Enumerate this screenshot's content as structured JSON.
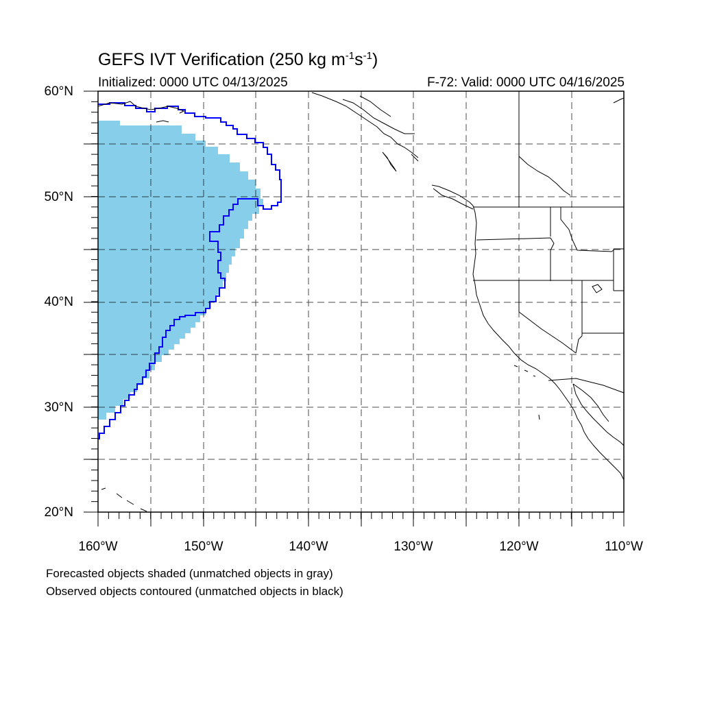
{
  "title": {
    "main": "GEFS IVT Verification (250 kg m",
    "sup1": "-1",
    "mid": "s",
    "sup2": "-1",
    "end": ")"
  },
  "initialized": "Initialized: 0000 UTC 04/13/2025",
  "valid": "F-72: Valid: 0000 UTC 04/16/2025",
  "lat_labels": [
    "60°N",
    "50°N",
    "40°N",
    "30°N",
    "20°N"
  ],
  "lon_labels": [
    "160°W",
    "150°W",
    "140°W",
    "130°W",
    "120°W",
    "110°W"
  ],
  "footnotes": [
    "Forecasted objects shaded (unmatched objects in gray)",
    "Observed objects contoured (unmatched objects in black)"
  ],
  "colors": {
    "forecast_fill": "#87ceeb",
    "observed_contour": "#0000ff",
    "coastline": "#000000",
    "grid": "#000000"
  }
}
